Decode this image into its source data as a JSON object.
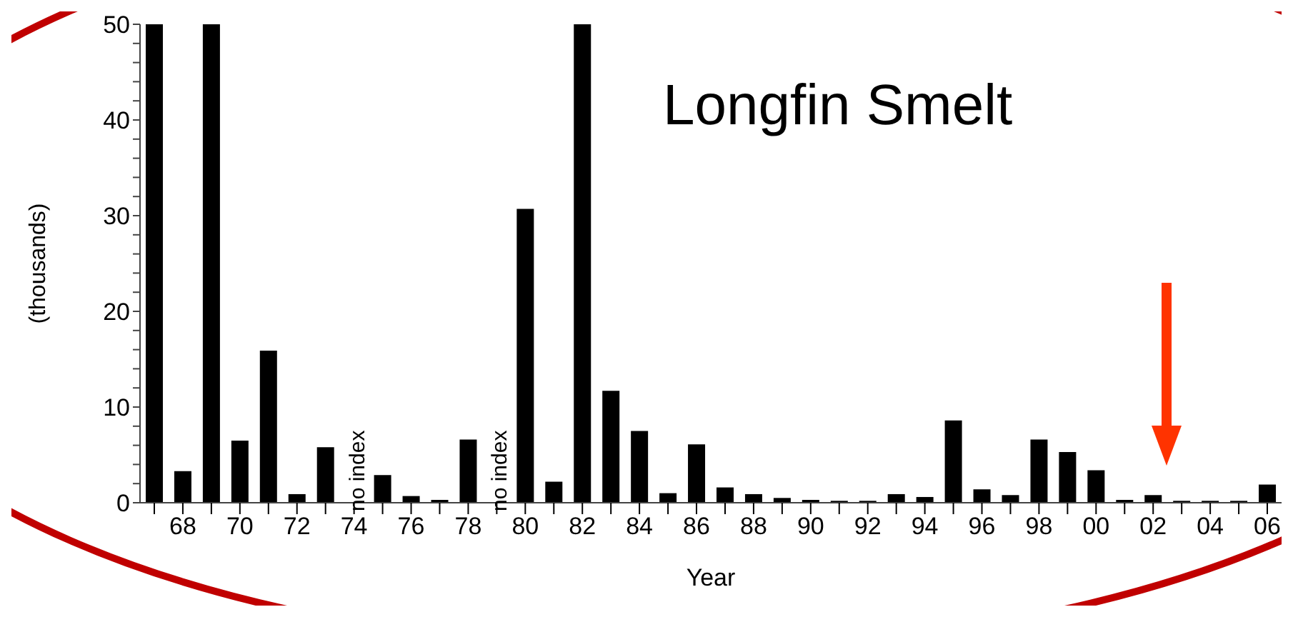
{
  "chart_data": {
    "type": "bar",
    "title": "Longfin Smelt",
    "xlabel": "Year",
    "ylabel": "(thousands)",
    "categories": [
      null,
      "68",
      null,
      "70",
      null,
      "72",
      null,
      "74",
      null,
      "76",
      null,
      "78",
      null,
      "80",
      null,
      "82",
      null,
      "84",
      null,
      "86",
      null,
      "88",
      null,
      "90",
      null,
      "92",
      null,
      "94",
      null,
      "96",
      null,
      "98",
      null,
      "00",
      null,
      "02",
      null,
      "04",
      null,
      "06"
    ],
    "values": [
      50,
      3.3,
      50,
      6.5,
      15.9,
      0.9,
      5.8,
      null,
      2.9,
      0.7,
      0.3,
      6.6,
      null,
      30.7,
      2.2,
      50,
      11.7,
      7.5,
      1.0,
      6.1,
      1.6,
      0.9,
      0.5,
      0.3,
      0.2,
      0.2,
      0.9,
      0.6,
      8.6,
      1.4,
      0.8,
      6.6,
      5.3,
      3.4,
      0.3,
      0.8,
      0.2,
      0.2,
      0.2,
      1.9
    ],
    "value_labels": [
      null,
      null,
      null,
      null,
      null,
      null,
      null,
      "no index",
      null,
      null,
      null,
      null,
      "no index",
      null,
      null,
      null,
      null,
      null,
      null,
      null,
      null,
      null,
      null,
      null,
      null,
      null,
      null,
      null,
      null,
      null,
      null,
      null,
      null,
      null,
      null,
      null,
      null,
      null,
      null,
      null
    ],
    "color": "#000000",
    "ylim": [
      0,
      50
    ],
    "yticks": [
      0,
      {
        "value": 2,
        "label": null
      },
      {
        "value": 4,
        "label": null
      },
      {
        "value": 6,
        "label": null
      },
      {
        "value": 8,
        "label": null
      },
      10,
      {
        "value": 12,
        "label": null
      },
      {
        "value": 14,
        "label": null
      },
      {
        "value": 16,
        "label": null
      },
      {
        "value": 18,
        "label": null
      },
      20,
      {
        "value": 22,
        "label": null
      },
      {
        "value": 24,
        "label": null
      },
      {
        "value": 26,
        "label": null
      },
      {
        "value": 28,
        "label": null
      },
      30,
      {
        "value": 32,
        "label": null
      },
      {
        "value": 34,
        "label": null
      },
      {
        "value": 36,
        "label": null
      },
      {
        "value": 38,
        "label": null
      },
      40,
      {
        "value": 42,
        "label": null
      },
      {
        "value": 44,
        "label": null
      },
      {
        "value": 46,
        "label": null
      },
      {
        "value": 48,
        "label": null
      },
      50
    ],
    "grid": false,
    "legend": false
  }
}
